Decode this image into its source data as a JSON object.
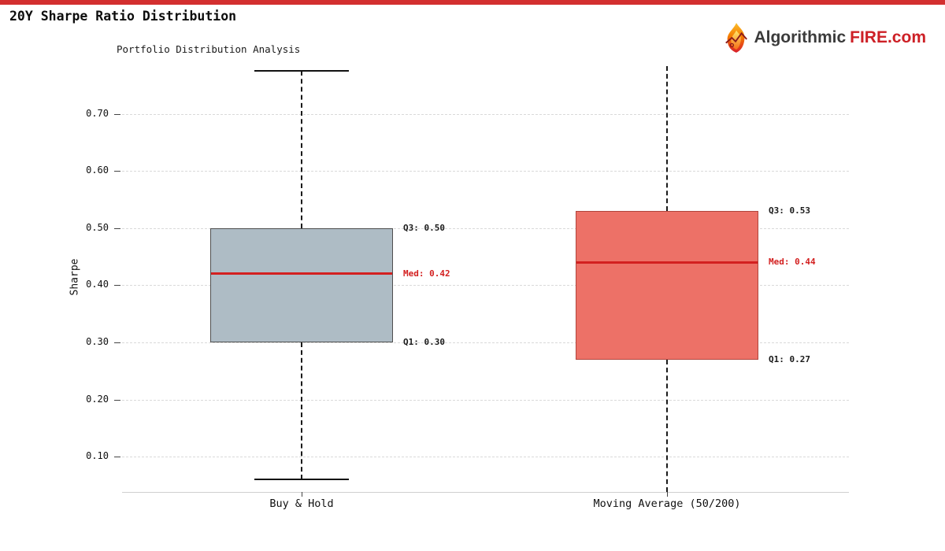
{
  "page": {
    "title": "20Y Sharpe Ratio Distribution"
  },
  "logo": {
    "name_dark": "Algorithmic",
    "name_red": "FIRE.com",
    "flame_icon": "flame-icon"
  },
  "accent": {
    "top_bar_color": "#d32f2f",
    "logo_red": "#cd2026"
  },
  "chart_data": {
    "type": "box",
    "title": "Portfolio Distribution Analysis",
    "ylabel": "Sharpe",
    "ylim": [
      0.038,
      0.784
    ],
    "grid": "horizontal-dashed",
    "legend": "none",
    "median_color": "#d32020",
    "yticks": [
      {
        "value": 0.1,
        "label": "0.10"
      },
      {
        "value": 0.2,
        "label": "0.20"
      },
      {
        "value": 0.3,
        "label": "0.30"
      },
      {
        "value": 0.4,
        "label": "0.40"
      },
      {
        "value": 0.5,
        "label": "0.50"
      },
      {
        "value": 0.6,
        "label": "0.60"
      },
      {
        "value": 0.7,
        "label": "0.70"
      }
    ],
    "categories": [
      "Buy & Hold",
      "Moving Average (50/200)"
    ],
    "boxes": [
      {
        "category": "Buy & Hold",
        "q1": 0.3,
        "median": 0.42,
        "q3": 0.5,
        "whisker_low": 0.06,
        "whisker_high": 0.776,
        "whisker_caps": true,
        "whiskers_clipped": false,
        "fill": "#aebcc5",
        "border": "#4f4f4f",
        "annotations": {
          "q3": "Q3: 0.50",
          "med": "Med: 0.42",
          "q1": "Q1: 0.30"
        }
      },
      {
        "category": "Moving Average (50/200)",
        "q1": 0.27,
        "median": 0.44,
        "q3": 0.53,
        "whisker_low": null,
        "whisker_high": null,
        "whisker_caps": false,
        "whiskers_clipped": true,
        "fill": "#ed7167",
        "border": "#b0453c",
        "annotations": {
          "q3": "Q3: 0.53",
          "med": "Med: 0.44",
          "q1": "Q1: 0.27"
        }
      }
    ]
  }
}
